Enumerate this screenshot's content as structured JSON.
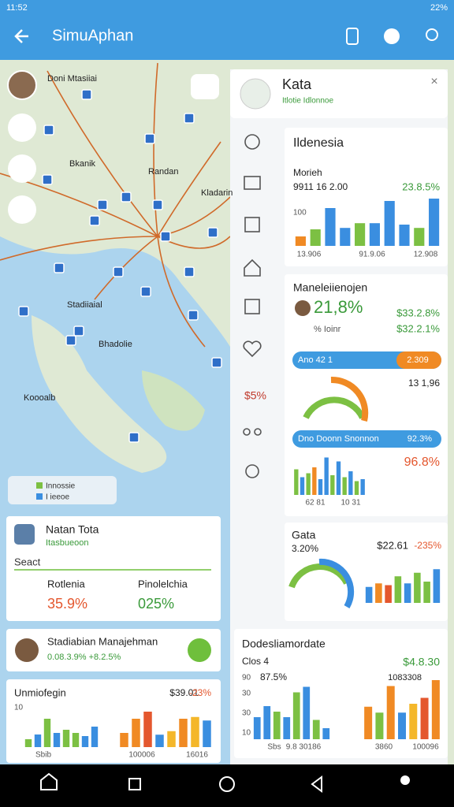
{
  "status_bar": {
    "time": "11:52",
    "battery": "22%"
  },
  "app_bar": {
    "title": "SimuAphan"
  },
  "map": {
    "places": [
      "Doni Mtasiiai",
      "Bkanik",
      "Randan",
      "Kladarin",
      "Stadiiaial",
      "Bhadolie",
      "Koooalb"
    ],
    "legend": [
      "Innossie",
      "I ieeoe"
    ]
  },
  "side_panel": {
    "title": "Kata",
    "subtitle": "Itlotie Idlonnoe",
    "side_value": "$5%"
  },
  "indonesia_card": {
    "title": "Ildenesia",
    "metric": "Morieh",
    "value": "9911 16 2.00",
    "change": "23.8.5%",
    "axis_label": "100",
    "x_labels": [
      "13.906",
      "91.9.06",
      "12.908"
    ],
    "bars": {
      "ylim": [
        0,
        100
      ],
      "values": [
        20,
        35,
        80,
        38,
        48,
        48,
        95,
        45,
        38,
        100
      ],
      "colors": [
        "#f08a24",
        "#7cc043",
        "#3a8ee0",
        "#3a8ee0",
        "#7cc043",
        "#3a8ee0",
        "#3a8ee0",
        "#3a8ee0",
        "#7cc043",
        "#3a8ee0"
      ]
    }
  },
  "management_card": {
    "title": "Maneleiienojen",
    "value": "21,8%",
    "value_2": "$33.2.8%",
    "sub_label": "% Ioinr",
    "value_3": "$32.2.1%",
    "progress_1": {
      "label": "Ano 42 1",
      "value": "2.309"
    },
    "gauge_value": "13 1,96",
    "progress_2": {
      "label": "Dno Doonn Snonnon",
      "value": "92.3%"
    },
    "highlight": "96.8%",
    "x_labels": [
      "62 81",
      "10 31"
    ],
    "bars": {
      "ylim": [
        0,
        100
      ],
      "values": [
        65,
        45,
        55,
        70,
        40,
        95,
        50,
        85,
        45,
        60,
        35,
        40
      ],
      "colors": [
        "#7cc043",
        "#3a8ee0",
        "#7cc043",
        "#f08a24",
        "#3a8ee0",
        "#3a8ee0",
        "#7cc043",
        "#3a8ee0",
        "#7cc043",
        "#3a8ee0",
        "#7cc043",
        "#3a8ee0"
      ]
    }
  },
  "gata_card": {
    "title": "Gata",
    "value": "3.20%",
    "amount": "$22.61",
    "change": "-235%",
    "bars": {
      "ylim": [
        0,
        100
      ],
      "values": [
        45,
        55,
        50,
        75,
        55,
        85,
        60,
        95
      ],
      "colors": [
        "#3a8ee0",
        "#f08a24",
        "#e4572e",
        "#7cc043",
        "#3a8ee0",
        "#7cc043",
        "#7cc043",
        "#3a8ee0"
      ]
    }
  },
  "total_card": {
    "title": "Natan Tota",
    "subtitle": "Itasbueoon",
    "search_placeholder": "Seact",
    "items": [
      {
        "label": "Rotlenia",
        "value": "35.9%"
      },
      {
        "label": "Pinolelchia",
        "value": "025%"
      }
    ]
  },
  "manager_card": {
    "title": "Stadiabian Manajehman",
    "values": "0.08.3.9% +8.2.5%"
  },
  "trend_card": {
    "title": "Unmiofegin",
    "amount": "$39.01",
    "change": "-23%",
    "y_labels": [
      "10"
    ],
    "x_labels": [
      "Sbib",
      "100006",
      "16016"
    ],
    "bars_left": {
      "ylim": [
        0,
        100
      ],
      "values": [
        25,
        40,
        90,
        45,
        55,
        45,
        35,
        65
      ],
      "colors": [
        "#7cc043",
        "#3a8ee0",
        "#7cc043",
        "#3a8ee0",
        "#7cc043",
        "#7cc043",
        "#3a8ee0",
        "#3a8ee0"
      ]
    },
    "bars_right": {
      "ylim": [
        0,
        100
      ],
      "values": [
        40,
        80,
        100,
        35,
        45,
        80,
        85,
        75
      ],
      "colors": [
        "#f08a24",
        "#f08a24",
        "#e4572e",
        "#3a8ee0",
        "#f4b72a",
        "#f08a24",
        "#f4b72a",
        "#3a8ee0"
      ]
    }
  },
  "date_card": {
    "title": "Dodesliamordate",
    "label": "Clos 4",
    "amount": "$4.8.30",
    "value": "87.5%",
    "count": "1083308",
    "y_labels": [
      "90",
      "30",
      "30",
      "10"
    ],
    "x_labels": [
      "Sbs",
      "9.8 30186",
      "3860",
      "100096"
    ],
    "bars_left": {
      "ylim": [
        0,
        100
      ],
      "values": [
        40,
        60,
        50,
        40,
        85,
        95,
        35,
        20
      ],
      "colors": [
        "#3a8ee0",
        "#3a8ee0",
        "#7cc043",
        "#3a8ee0",
        "#7cc043",
        "#3a8ee0",
        "#7cc043",
        "#3a8ee0"
      ]
    },
    "bars_right": {
      "ylim": [
        0,
        100
      ],
      "values": [
        55,
        45,
        90,
        45,
        60,
        70,
        100
      ],
      "colors": [
        "#f08a24",
        "#7cc043",
        "#f08a24",
        "#3a8ee0",
        "#f4b72a",
        "#e4572e",
        "#f08a24"
      ]
    }
  }
}
